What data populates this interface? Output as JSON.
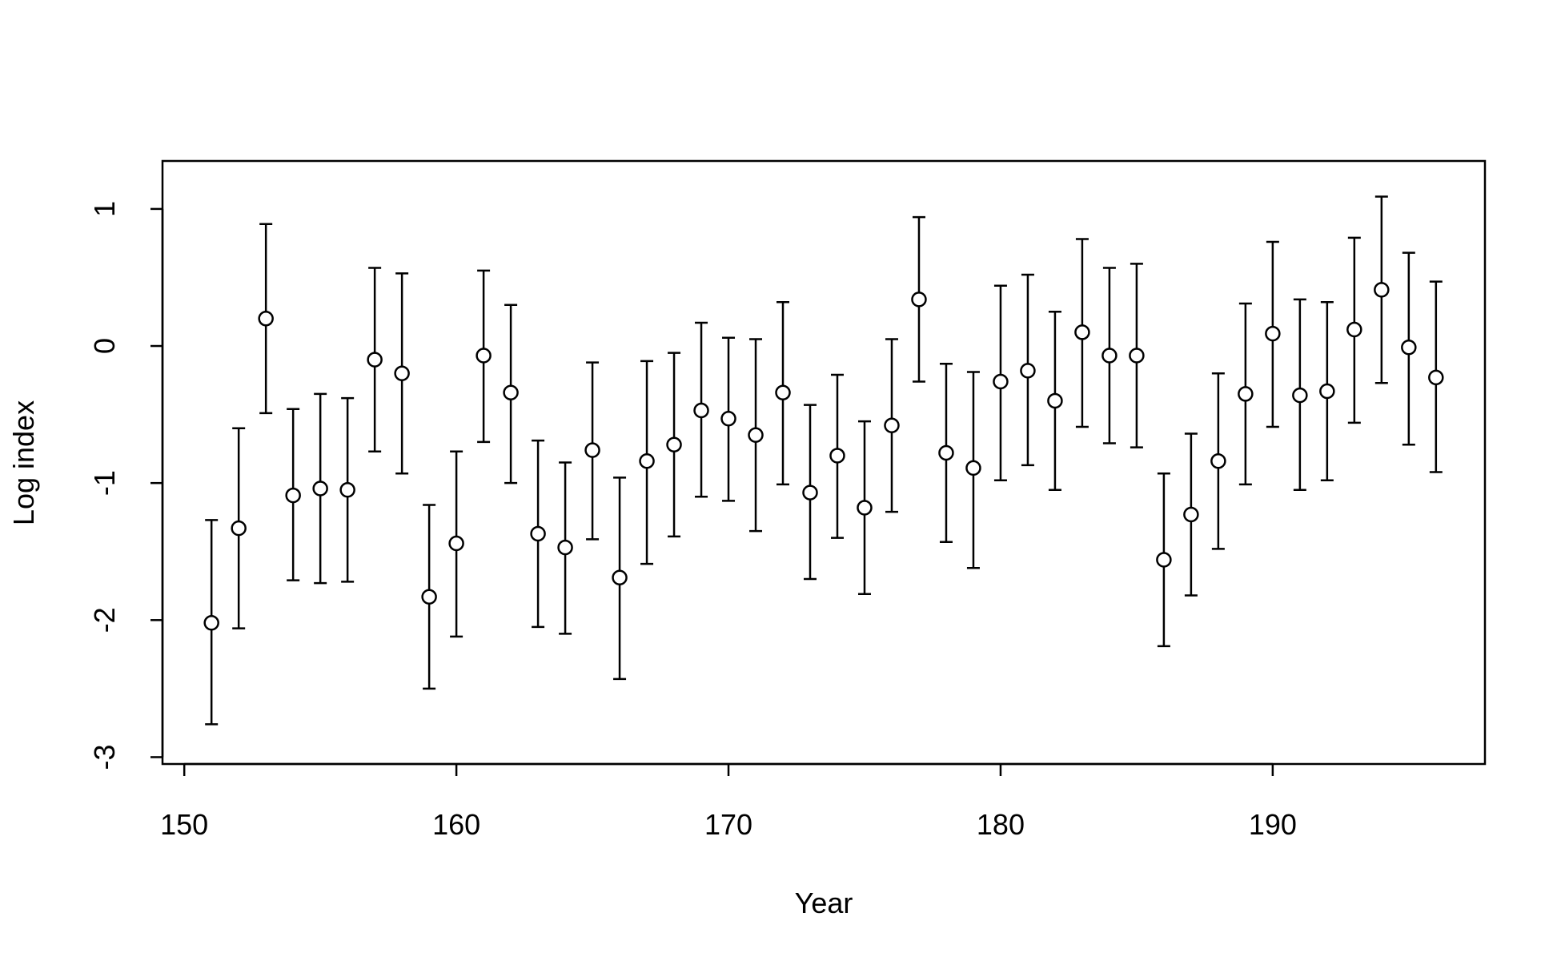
{
  "chart_data": {
    "type": "scatter",
    "title": "",
    "xlabel": "Year",
    "ylabel": "Log index",
    "xlim": [
      149.2,
      197.8
    ],
    "ylim": [
      -3.05,
      1.35
    ],
    "x_ticks": [
      150,
      160,
      170,
      180,
      190
    ],
    "y_ticks": [
      -3,
      -2,
      -1,
      0,
      1
    ],
    "grid": false,
    "legend": "none",
    "error_bars": true,
    "series": [
      {
        "points": [
          {
            "x": 151,
            "y": -2.02,
            "lo": -2.76,
            "hi": -1.27
          },
          {
            "x": 152,
            "y": -1.33,
            "lo": -2.06,
            "hi": -0.6
          },
          {
            "x": 153,
            "y": 0.2,
            "lo": -0.49,
            "hi": 0.89
          },
          {
            "x": 154,
            "y": -1.09,
            "lo": -1.71,
            "hi": -0.46
          },
          {
            "x": 155,
            "y": -1.04,
            "lo": -1.73,
            "hi": -0.35
          },
          {
            "x": 156,
            "y": -1.05,
            "lo": -1.72,
            "hi": -0.38
          },
          {
            "x": 157,
            "y": -0.1,
            "lo": -0.77,
            "hi": 0.57
          },
          {
            "x": 158,
            "y": -0.2,
            "lo": -0.93,
            "hi": 0.53
          },
          {
            "x": 159,
            "y": -1.83,
            "lo": -2.5,
            "hi": -1.16
          },
          {
            "x": 160,
            "y": -1.44,
            "lo": -2.12,
            "hi": -0.77
          },
          {
            "x": 161,
            "y": -0.07,
            "lo": -0.7,
            "hi": 0.55
          },
          {
            "x": 162,
            "y": -0.34,
            "lo": -1.0,
            "hi": 0.3
          },
          {
            "x": 163,
            "y": -1.37,
            "lo": -2.05,
            "hi": -0.69
          },
          {
            "x": 164,
            "y": -1.47,
            "lo": -2.1,
            "hi": -0.85
          },
          {
            "x": 165,
            "y": -0.76,
            "lo": -1.41,
            "hi": -0.12
          },
          {
            "x": 166,
            "y": -1.69,
            "lo": -2.43,
            "hi": -0.96
          },
          {
            "x": 167,
            "y": -0.84,
            "lo": -1.59,
            "hi": -0.11
          },
          {
            "x": 168,
            "y": -0.72,
            "lo": -1.39,
            "hi": -0.05
          },
          {
            "x": 169,
            "y": -0.47,
            "lo": -1.1,
            "hi": 0.17
          },
          {
            "x": 170,
            "y": -0.53,
            "lo": -1.13,
            "hi": 0.06
          },
          {
            "x": 171,
            "y": -0.65,
            "lo": -1.35,
            "hi": 0.05
          },
          {
            "x": 172,
            "y": -0.34,
            "lo": -1.01,
            "hi": 0.32
          },
          {
            "x": 173,
            "y": -1.07,
            "lo": -1.7,
            "hi": -0.43
          },
          {
            "x": 174,
            "y": -0.8,
            "lo": -1.4,
            "hi": -0.21
          },
          {
            "x": 175,
            "y": -1.18,
            "lo": -1.81,
            "hi": -0.55
          },
          {
            "x": 176,
            "y": -0.58,
            "lo": -1.21,
            "hi": 0.05
          },
          {
            "x": 177,
            "y": 0.34,
            "lo": -0.26,
            "hi": 0.94
          },
          {
            "x": 178,
            "y": -0.78,
            "lo": -1.43,
            "hi": -0.13
          },
          {
            "x": 179,
            "y": -0.89,
            "lo": -1.62,
            "hi": -0.19
          },
          {
            "x": 180,
            "y": -0.26,
            "lo": -0.98,
            "hi": 0.44
          },
          {
            "x": 181,
            "y": -0.18,
            "lo": -0.87,
            "hi": 0.52
          },
          {
            "x": 182,
            "y": -0.4,
            "lo": -1.05,
            "hi": 0.25
          },
          {
            "x": 183,
            "y": 0.1,
            "lo": -0.59,
            "hi": 0.78
          },
          {
            "x": 184,
            "y": -0.07,
            "lo": -0.71,
            "hi": 0.57
          },
          {
            "x": 185,
            "y": -0.07,
            "lo": -0.74,
            "hi": 0.6
          },
          {
            "x": 186,
            "y": -1.56,
            "lo": -2.19,
            "hi": -0.93
          },
          {
            "x": 187,
            "y": -1.23,
            "lo": -1.82,
            "hi": -0.64
          },
          {
            "x": 188,
            "y": -0.84,
            "lo": -1.48,
            "hi": -0.2
          },
          {
            "x": 189,
            "y": -0.35,
            "lo": -1.01,
            "hi": 0.31
          },
          {
            "x": 190,
            "y": 0.09,
            "lo": -0.59,
            "hi": 0.76
          },
          {
            "x": 191,
            "y": -0.36,
            "lo": -1.05,
            "hi": 0.34
          },
          {
            "x": 192,
            "y": -0.33,
            "lo": -0.98,
            "hi": 0.32
          },
          {
            "x": 193,
            "y": 0.12,
            "lo": -0.56,
            "hi": 0.79
          },
          {
            "x": 194,
            "y": 0.41,
            "lo": -0.27,
            "hi": 1.09
          },
          {
            "x": 195,
            "y": -0.01,
            "lo": -0.72,
            "hi": 0.68
          },
          {
            "x": 196,
            "y": -0.23,
            "lo": -0.92,
            "hi": 0.47
          }
        ]
      }
    ]
  }
}
